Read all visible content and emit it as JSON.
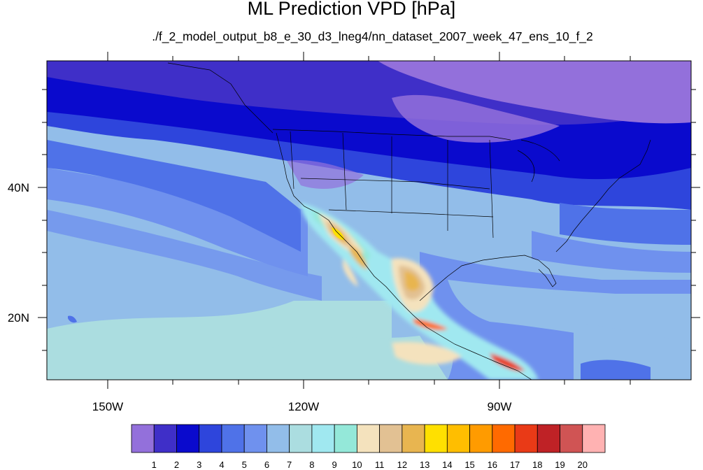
{
  "title": "ML Prediction VPD [hPa]",
  "subtitle": "./f_2_model_output_b8_e_30_d3_lneg4/nn_dataset_2007_week_47_ens_10_f_2",
  "map": {
    "longitude_labels": [
      "150W",
      "120W",
      "90W"
    ],
    "latitude_labels": [
      "40N",
      "20N"
    ]
  },
  "colorbar": {
    "colors": [
      "#9370db",
      "#3f2fc8",
      "#0a0acd",
      "#2e45dc",
      "#4f72e8",
      "#6f91ee",
      "#92bde9",
      "#abdde0",
      "#a0e8f0",
      "#94e8d9",
      "#f4e2bd",
      "#e2c193",
      "#e8b550",
      "#ffe000",
      "#ffbe00",
      "#ff9b00",
      "#ff6a00",
      "#e93a17",
      "#bf2226",
      "#d05454",
      "#ffb2b2"
    ],
    "labels": [
      "1",
      "2",
      "3",
      "4",
      "5",
      "6",
      "7",
      "8",
      "9",
      "10",
      "11",
      "12",
      "13",
      "14",
      "15",
      "16",
      "17",
      "18",
      "19",
      "20"
    ]
  }
}
